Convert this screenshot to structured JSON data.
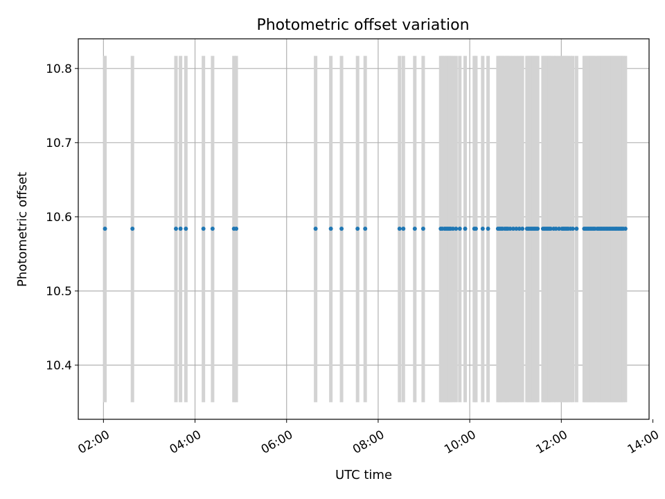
{
  "chart_data": {
    "type": "scatter",
    "title": "Photometric offset variation",
    "xlabel": "UTC time",
    "ylabel": "Photometric offset",
    "x_format": "HH:MM",
    "xlim": [
      "01:27",
      "13:55"
    ],
    "ylim": [
      10.327,
      10.84
    ],
    "x_ticks": [
      "02:00",
      "04:00",
      "06:00",
      "08:00",
      "10:00",
      "12:00",
      "14:00"
    ],
    "y_ticks": [
      10.4,
      10.5,
      10.6,
      10.7,
      10.8
    ],
    "y_tick_labels": [
      "10.4",
      "10.5",
      "10.6",
      "10.7",
      "10.8"
    ],
    "grid": true,
    "colors": {
      "points": "#1f77b4",
      "bands": "#d3d3d3",
      "grid": "#b0b0b0"
    },
    "band_range": [
      10.35,
      10.817
    ],
    "band_x": [
      "02:02",
      "02:38",
      "03:35",
      "03:41",
      "03:48",
      "04:11",
      "04:23",
      "04:51",
      "04:54",
      "06:38",
      "06:58",
      "07:12",
      "07:33",
      "07:43",
      "08:28",
      "08:33",
      "08:48",
      "08:59",
      "09:22",
      "09:24",
      "09:27",
      "09:29",
      "09:31",
      "09:33",
      "09:35",
      "09:38",
      "09:42",
      "09:47",
      "09:54",
      "10:06",
      "10:08",
      "10:17",
      "10:24",
      "10:37",
      "10:39",
      "10:41",
      "10:43",
      "10:46",
      "10:48",
      "10:50",
      "10:53",
      "10:57",
      "11:01",
      "11:05",
      "11:09",
      "11:15",
      "11:17",
      "11:19",
      "11:21",
      "11:23",
      "11:25",
      "11:27",
      "11:29",
      "11:36",
      "11:38",
      "11:40",
      "11:42",
      "11:44",
      "11:46",
      "11:50",
      "11:53",
      "11:57",
      "12:01",
      "12:03",
      "12:05",
      "12:07",
      "12:09",
      "12:12",
      "12:15",
      "12:20",
      "12:30",
      "12:32",
      "12:34",
      "12:36",
      "12:38",
      "12:40",
      "12:42",
      "12:44",
      "12:47",
      "12:49",
      "12:51",
      "12:53",
      "12:55",
      "12:57",
      "12:59",
      "13:01",
      "13:03",
      "13:05",
      "13:07",
      "13:09",
      "13:11",
      "13:13",
      "13:15",
      "13:17",
      "13:19",
      "13:21",
      "13:24"
    ],
    "series": [
      {
        "y": 10.584,
        "x": [
          "02:02",
          "02:38",
          "03:35",
          "03:41",
          "03:48",
          "04:11",
          "04:23",
          "04:51",
          "04:54",
          "06:38",
          "06:58",
          "07:12",
          "07:33",
          "07:43",
          "08:28",
          "08:33",
          "08:48",
          "08:59",
          "09:22",
          "09:24",
          "09:27",
          "09:29",
          "09:31",
          "09:33",
          "09:35",
          "09:38",
          "09:42",
          "09:47",
          "09:54",
          "10:06",
          "10:08",
          "10:17",
          "10:24",
          "10:37",
          "10:39",
          "10:41",
          "10:43",
          "10:46",
          "10:48",
          "10:50",
          "10:53",
          "10:57",
          "11:01",
          "11:05",
          "11:09",
          "11:15",
          "11:17",
          "11:19",
          "11:21",
          "11:23",
          "11:25",
          "11:27",
          "11:29",
          "11:36",
          "11:38",
          "11:40",
          "11:42",
          "11:44",
          "11:46",
          "11:50",
          "11:53",
          "11:57",
          "12:01",
          "12:03",
          "12:05",
          "12:07",
          "12:09",
          "12:12",
          "12:15",
          "12:20",
          "12:30",
          "12:32",
          "12:34",
          "12:36",
          "12:38",
          "12:40",
          "12:42",
          "12:44",
          "12:47",
          "12:49",
          "12:51",
          "12:53",
          "12:55",
          "12:57",
          "12:59",
          "13:01",
          "13:03",
          "13:05",
          "13:07",
          "13:09",
          "13:11",
          "13:13",
          "13:15",
          "13:17",
          "13:19",
          "13:21",
          "13:24"
        ]
      }
    ]
  }
}
